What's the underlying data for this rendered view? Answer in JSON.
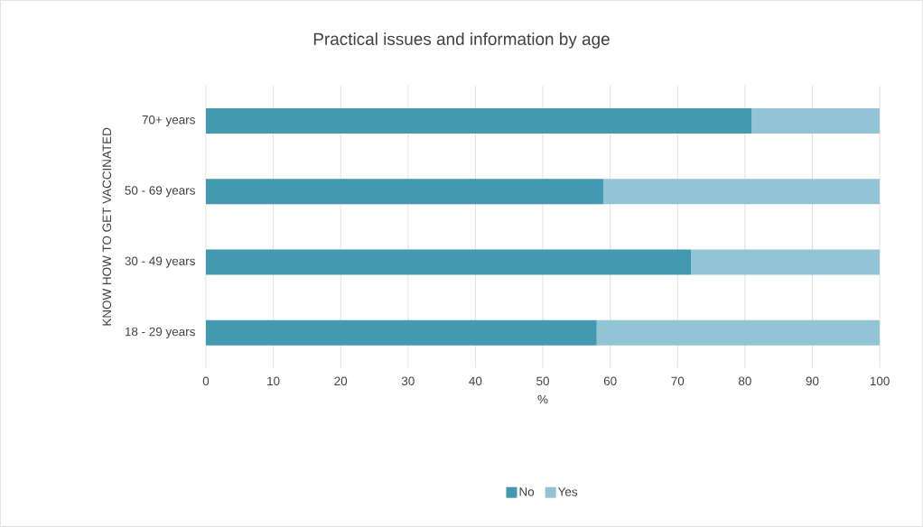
{
  "chart_data": {
    "type": "bar",
    "orientation": "horizontal",
    "stacked": true,
    "title": "Practical issues and information by age",
    "xlabel": "%",
    "ylabel": "KNOW HOW TO GET VACCINATED",
    "categories": [
      "70+ years",
      "50 - 69 years",
      "30 - 49 years",
      "18 - 29 years"
    ],
    "series": [
      {
        "name": "No",
        "color": "#4299b0",
        "values": [
          81,
          59,
          72,
          58
        ]
      },
      {
        "name": "Yes",
        "color": "#92c4d5",
        "values": [
          19,
          41,
          28,
          42
        ]
      }
    ],
    "xlim": [
      0,
      100
    ],
    "xticks": [
      0,
      10,
      20,
      30,
      40,
      50,
      60,
      70,
      80,
      90,
      100
    ],
    "grid": "x",
    "legend": "bottom"
  }
}
